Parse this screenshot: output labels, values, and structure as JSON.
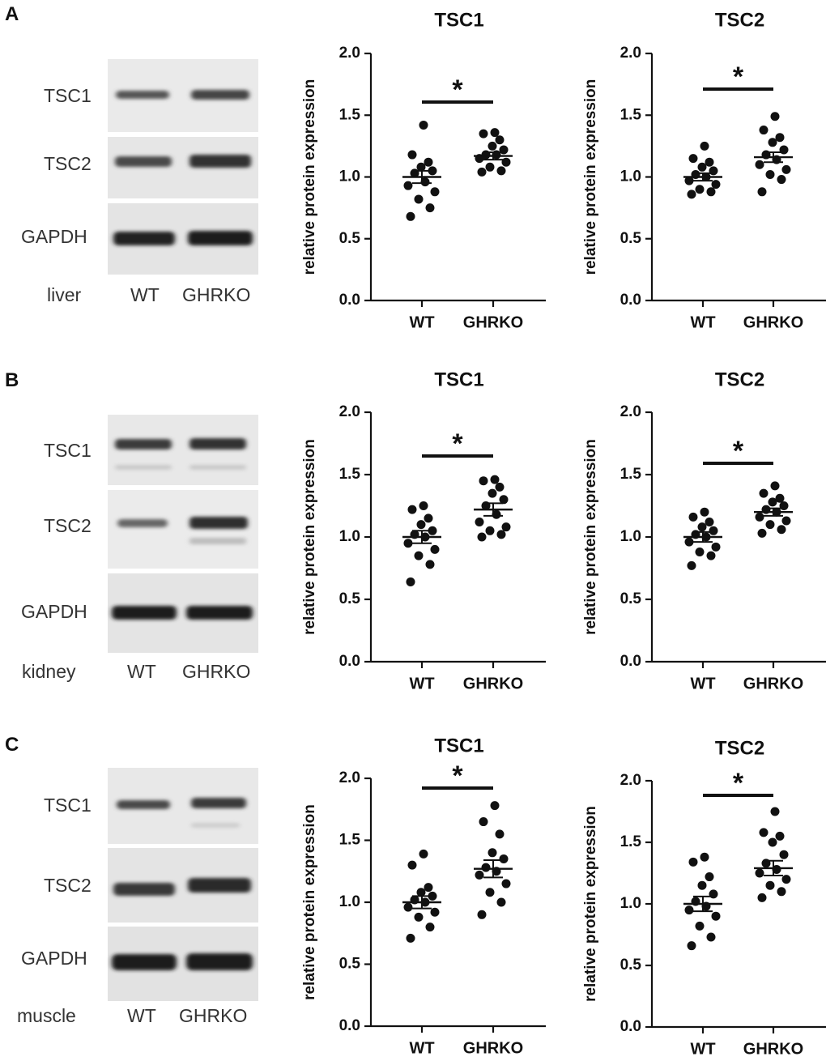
{
  "panels": [
    {
      "letter": "A",
      "blot": {
        "rows": [
          "TSC1",
          "TSC2",
          "GAPDH"
        ],
        "tissue": "liver",
        "lanes": [
          "WT",
          "GHRKO"
        ]
      }
    },
    {
      "letter": "B",
      "blot": {
        "rows": [
          "TSC1",
          "TSC2",
          "GAPDH"
        ],
        "tissue": "kidney",
        "lanes": [
          "WT",
          "GHRKO"
        ]
      }
    },
    {
      "letter": "C",
      "blot": {
        "rows": [
          "TSC1",
          "TSC2",
          "GAPDH"
        ],
        "tissue": "muscle",
        "lanes": [
          "WT",
          "GHRKO"
        ]
      }
    }
  ],
  "chart_data": [
    {
      "panel": "A",
      "type": "scatter",
      "title": "TSC1",
      "ylabel": "relative protein expression",
      "xlabel": "",
      "categories": [
        "WT",
        "GHRKO"
      ],
      "ylim": [
        0,
        2.0
      ],
      "yticks": [
        "0.0",
        "0.5",
        "1.0",
        "1.5",
        "2.0"
      ],
      "significance": "*",
      "series": [
        {
          "points": [
            0.68,
            0.75,
            0.82,
            0.88,
            0.93,
            0.96,
            1.03,
            1.05,
            1.08,
            1.12,
            1.18,
            1.42
          ],
          "mean": 1.0,
          "sem": 0.05
        },
        {
          "points": [
            1.04,
            1.05,
            1.08,
            1.12,
            1.15,
            1.18,
            1.18,
            1.22,
            1.25,
            1.3,
            1.35,
            1.36
          ],
          "mean": 1.17,
          "sem": 0.03
        }
      ]
    },
    {
      "panel": "A",
      "type": "scatter",
      "title": "TSC2",
      "ylabel": "relative protein expression",
      "xlabel": "",
      "categories": [
        "WT",
        "GHRKO"
      ],
      "ylim": [
        0,
        2.0
      ],
      "yticks": [
        "0.0",
        "0.5",
        "1.0",
        "1.5",
        "2.0"
      ],
      "significance": "*",
      "series": [
        {
          "points": [
            0.86,
            0.88,
            0.9,
            0.94,
            0.97,
            1.0,
            1.02,
            1.05,
            1.08,
            1.12,
            1.15,
            1.25
          ],
          "mean": 1.0,
          "sem": 0.03
        },
        {
          "points": [
            0.88,
            0.98,
            1.02,
            1.06,
            1.1,
            1.14,
            1.18,
            1.22,
            1.28,
            1.32,
            1.38,
            1.49
          ],
          "mean": 1.16,
          "sem": 0.04
        }
      ]
    },
    {
      "panel": "B",
      "type": "scatter",
      "title": "TSC1",
      "ylabel": "relative protein expression",
      "xlabel": "",
      "categories": [
        "WT",
        "GHRKO"
      ],
      "ylim": [
        0,
        2.0
      ],
      "yticks": [
        "0.0",
        "0.5",
        "1.0",
        "1.5",
        "2.0"
      ],
      "significance": "*",
      "series": [
        {
          "points": [
            0.64,
            0.78,
            0.85,
            0.9,
            0.95,
            1.0,
            1.02,
            1.05,
            1.1,
            1.15,
            1.22,
            1.25
          ],
          "mean": 1.0,
          "sem": 0.05
        },
        {
          "points": [
            1.0,
            1.02,
            1.05,
            1.08,
            1.12,
            1.18,
            1.25,
            1.3,
            1.35,
            1.4,
            1.45,
            1.46
          ],
          "mean": 1.22,
          "sem": 0.05
        }
      ]
    },
    {
      "panel": "B",
      "type": "scatter",
      "title": "TSC2",
      "ylabel": "relative protein expression",
      "xlabel": "",
      "categories": [
        "WT",
        "GHRKO"
      ],
      "ylim": [
        0,
        2.0
      ],
      "yticks": [
        "0.0",
        "0.5",
        "1.0",
        "1.5",
        "2.0"
      ],
      "significance": "*",
      "series": [
        {
          "points": [
            0.77,
            0.85,
            0.88,
            0.92,
            0.96,
            1.0,
            1.02,
            1.05,
            1.08,
            1.12,
            1.16,
            1.2
          ],
          "mean": 1.0,
          "sem": 0.04
        },
        {
          "points": [
            1.03,
            1.06,
            1.1,
            1.13,
            1.16,
            1.2,
            1.22,
            1.25,
            1.28,
            1.31,
            1.35,
            1.41
          ],
          "mean": 1.2,
          "sem": 0.03
        }
      ]
    },
    {
      "panel": "C",
      "type": "scatter",
      "title": "TSC1",
      "ylabel": "relative protein expression",
      "xlabel": "",
      "categories": [
        "WT",
        "GHRKO"
      ],
      "ylim": [
        0,
        2.0
      ],
      "yticks": [
        "0.0",
        "0.5",
        "1.0",
        "1.5",
        "2.0"
      ],
      "significance": "*",
      "series": [
        {
          "points": [
            0.71,
            0.8,
            0.88,
            0.92,
            0.96,
            1.0,
            1.02,
            1.05,
            1.08,
            1.12,
            1.3,
            1.39
          ],
          "mean": 1.0,
          "sem": 0.05
        },
        {
          "points": [
            0.9,
            1.0,
            1.08,
            1.15,
            1.22,
            1.25,
            1.28,
            1.35,
            1.4,
            1.55,
            1.65,
            1.78
          ],
          "mean": 1.27,
          "sem": 0.07
        }
      ]
    },
    {
      "panel": "C",
      "type": "scatter",
      "title": "TSC2",
      "ylabel": "relative protein expression",
      "xlabel": "",
      "categories": [
        "WT",
        "GHRKO"
      ],
      "ylim": [
        0,
        2.0
      ],
      "yticks": [
        "0.0",
        "0.5",
        "1.0",
        "1.5",
        "2.0"
      ],
      "significance": "*",
      "series": [
        {
          "points": [
            0.66,
            0.73,
            0.82,
            0.9,
            0.95,
            0.98,
            1.02,
            1.08,
            1.15,
            1.22,
            1.34,
            1.38
          ],
          "mean": 1.0,
          "sem": 0.06
        },
        {
          "points": [
            1.05,
            1.1,
            1.15,
            1.2,
            1.25,
            1.28,
            1.33,
            1.4,
            1.5,
            1.55,
            1.58,
            1.75
          ],
          "mean": 1.29,
          "sem": 0.06
        }
      ]
    }
  ]
}
